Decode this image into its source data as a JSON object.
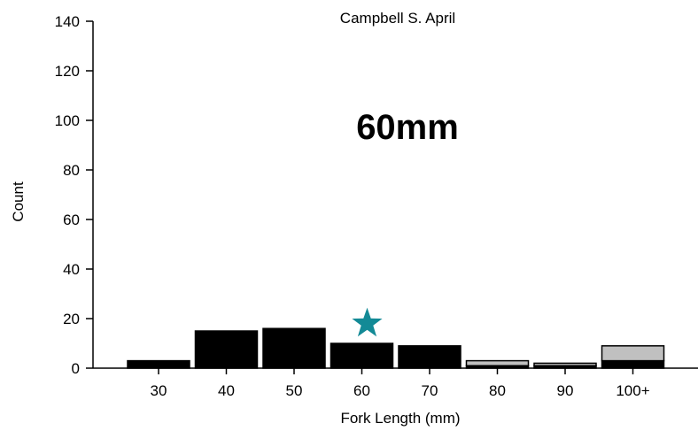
{
  "chart_data": {
    "type": "bar",
    "title": "Campbell S. April",
    "annotation": "60mm",
    "xlabel": "Fork Length (mm)",
    "ylabel": "Count",
    "categories": [
      "30",
      "40",
      "50",
      "60",
      "70",
      "80",
      "90",
      "100+"
    ],
    "ylim": [
      0,
      140
    ],
    "yticks": [
      0,
      20,
      40,
      60,
      80,
      100,
      120,
      140
    ],
    "stacked": true,
    "series": [
      {
        "values": [
          3,
          15,
          16,
          10,
          9,
          1,
          1,
          3
        ],
        "color": "#000000"
      },
      {
        "values": [
          0,
          0,
          0,
          0,
          0,
          2,
          1,
          6
        ],
        "color": "#c0c0c0"
      }
    ],
    "marker": {
      "category": "60",
      "value": 18,
      "shape": "star",
      "color": "#138a96"
    },
    "grid": false
  }
}
